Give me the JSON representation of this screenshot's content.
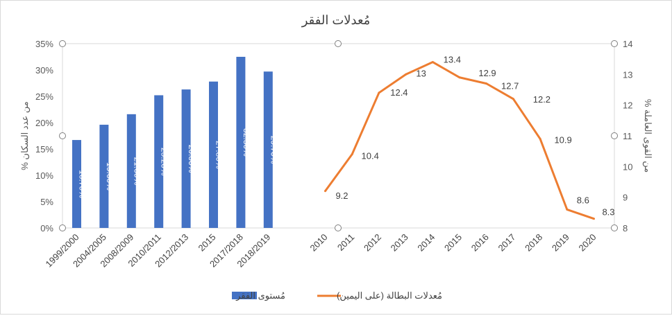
{
  "chart_data": {
    "title": "مُعدلات الفقر",
    "left_axis": {
      "label": "% من عدد السكان",
      "ticks": [
        "0%",
        "5%",
        "10%",
        "15%",
        "20%",
        "25%",
        "30%",
        "35%"
      ],
      "ylim": [
        0,
        35
      ]
    },
    "right_axis": {
      "label": "% من القوى العاملة",
      "ticks": [
        "8",
        "9",
        "10",
        "11",
        "12",
        "13",
        "14"
      ],
      "ylim": [
        8,
        14
      ]
    },
    "bar_series": {
      "type": "bar",
      "name": "مُستوى الفقر",
      "color": "#4472c4",
      "categories": [
        "1999/2000",
        "2004/2005",
        "2008/2009",
        "2010/2011",
        "2012/2013",
        "2015",
        "2017/2018",
        "2018/2019"
      ],
      "values": [
        16.7,
        19.6,
        21.6,
        25.2,
        26.3,
        27.8,
        32.5,
        29.7
      ],
      "labels": [
        "16.70%",
        "19.60%",
        "21.60%",
        "25.20%",
        "26.30%",
        "27.80%",
        "32.50%",
        "29.70%"
      ]
    },
    "line_series": {
      "type": "line",
      "name": "مُعدلات البطالة (على اليمين)",
      "color": "#ed7d31",
      "categories": [
        "2010",
        "2011",
        "2012",
        "2013",
        "2014",
        "2015",
        "2016",
        "2017",
        "2018",
        "2019",
        "2020"
      ],
      "values": [
        9.2,
        10.4,
        12.4,
        13.0,
        13.4,
        12.9,
        12.7,
        12.2,
        10.9,
        8.6,
        8.3
      ],
      "labels": [
        "9.2",
        "10.4",
        "12.4",
        "13",
        "13.4",
        "12.9",
        "12.7",
        "12.2",
        "10.9",
        "8.6",
        "8.3"
      ]
    },
    "grid": false,
    "legend": "bottom"
  }
}
